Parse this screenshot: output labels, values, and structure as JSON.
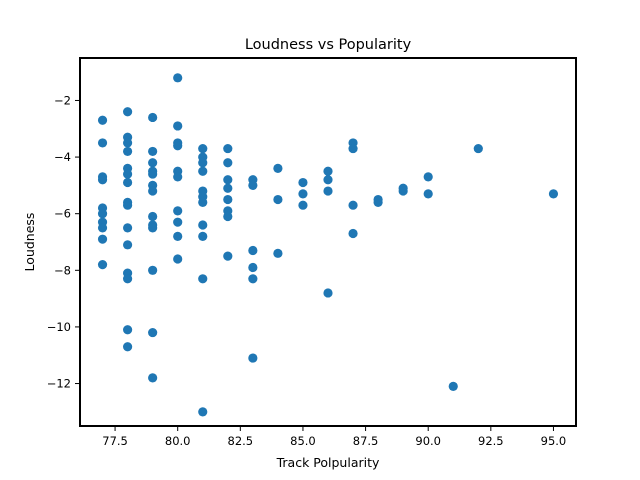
{
  "chart_data": {
    "type": "scatter",
    "title": "Loudness vs Popularity",
    "xlabel": "Track Polpularity",
    "ylabel": "Loudness",
    "xlim": [
      76.1,
      95.9
    ],
    "ylim": [
      -13.5,
      -0.5
    ],
    "xticks": [
      77.5,
      80.0,
      82.5,
      85.0,
      87.5,
      90.0,
      92.5,
      95.0
    ],
    "xtick_labels": [
      "77.5",
      "80.0",
      "82.5",
      "85.0",
      "87.5",
      "90.0",
      "92.5",
      "95.0"
    ],
    "yticks": [
      -12,
      -10,
      -8,
      -6,
      -4,
      -2
    ],
    "ytick_labels": [
      "−12",
      "−10",
      "−8",
      "−6",
      "−4",
      "−2"
    ],
    "grid": false,
    "legend": "none",
    "marker_color": "#1f77b4",
    "series": [
      {
        "points": [
          [
            77,
            -2.7
          ],
          [
            77,
            -3.5
          ],
          [
            77,
            -4.7
          ],
          [
            77,
            -4.8
          ],
          [
            77,
            -5.8
          ],
          [
            77,
            -6.0
          ],
          [
            77,
            -6.3
          ],
          [
            77,
            -6.5
          ],
          [
            77,
            -6.9
          ],
          [
            77,
            -7.8
          ],
          [
            78,
            -2.4
          ],
          [
            78,
            -3.3
          ],
          [
            78,
            -3.5
          ],
          [
            78,
            -3.8
          ],
          [
            78,
            -4.4
          ],
          [
            78,
            -4.6
          ],
          [
            78,
            -4.9
          ],
          [
            78,
            -5.6
          ],
          [
            78,
            -5.7
          ],
          [
            78,
            -6.5
          ],
          [
            78,
            -7.1
          ],
          [
            78,
            -8.1
          ],
          [
            78,
            -8.3
          ],
          [
            78,
            -10.1
          ],
          [
            78,
            -10.7
          ],
          [
            79,
            -2.6
          ],
          [
            79,
            -3.8
          ],
          [
            79,
            -4.2
          ],
          [
            79,
            -4.5
          ],
          [
            79,
            -4.6
          ],
          [
            79,
            -5.0
          ],
          [
            79,
            -5.2
          ],
          [
            79,
            -6.1
          ],
          [
            79,
            -6.4
          ],
          [
            79,
            -6.5
          ],
          [
            79,
            -8.0
          ],
          [
            79,
            -10.2
          ],
          [
            79,
            -11.8
          ],
          [
            80,
            -1.2
          ],
          [
            80,
            -2.9
          ],
          [
            80,
            -3.5
          ],
          [
            80,
            -3.6
          ],
          [
            80,
            -4.5
          ],
          [
            80,
            -4.7
          ],
          [
            80,
            -5.9
          ],
          [
            80,
            -6.3
          ],
          [
            80,
            -6.8
          ],
          [
            80,
            -7.6
          ],
          [
            81,
            -3.7
          ],
          [
            81,
            -4.0
          ],
          [
            81,
            -4.2
          ],
          [
            81,
            -4.5
          ],
          [
            81,
            -5.2
          ],
          [
            81,
            -5.4
          ],
          [
            81,
            -5.6
          ],
          [
            81,
            -6.4
          ],
          [
            81,
            -6.8
          ],
          [
            81,
            -8.3
          ],
          [
            81,
            -13.0
          ],
          [
            82,
            -3.7
          ],
          [
            82,
            -4.2
          ],
          [
            82,
            -4.8
          ],
          [
            82,
            -5.1
          ],
          [
            82,
            -5.5
          ],
          [
            82,
            -5.9
          ],
          [
            82,
            -6.1
          ],
          [
            82,
            -7.5
          ],
          [
            83,
            -4.8
          ],
          [
            83,
            -5.0
          ],
          [
            83,
            -7.3
          ],
          [
            83,
            -7.9
          ],
          [
            83,
            -8.3
          ],
          [
            83,
            -11.1
          ],
          [
            84,
            -4.4
          ],
          [
            84,
            -5.5
          ],
          [
            84,
            -7.4
          ],
          [
            85,
            -4.9
          ],
          [
            85,
            -5.3
          ],
          [
            85,
            -5.7
          ],
          [
            86,
            -4.5
          ],
          [
            86,
            -4.8
          ],
          [
            86,
            -5.2
          ],
          [
            86,
            -8.8
          ],
          [
            87,
            -3.5
          ],
          [
            87,
            -3.7
          ],
          [
            87,
            -5.7
          ],
          [
            87,
            -6.7
          ],
          [
            88,
            -5.5
          ],
          [
            88,
            -5.6
          ],
          [
            89,
            -5.1
          ],
          [
            89,
            -5.2
          ],
          [
            90,
            -4.7
          ],
          [
            90,
            -5.3
          ],
          [
            91,
            -12.1
          ],
          [
            92,
            -3.7
          ],
          [
            95,
            -5.3
          ]
        ]
      }
    ]
  }
}
